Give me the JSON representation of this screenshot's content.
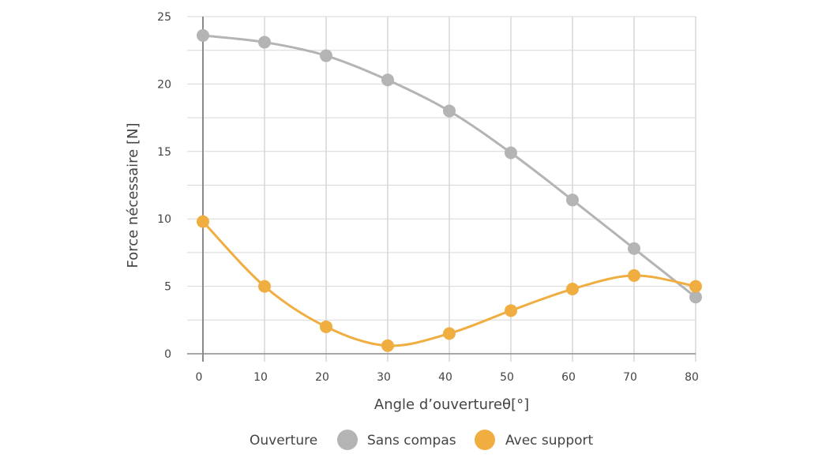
{
  "chart_data": {
    "type": "line",
    "title": "",
    "xlabel": "Angle d’ouvertureθ[°]",
    "ylabel": "Force nécessaire [N]",
    "xlim": [
      0,
      80
    ],
    "ylim": [
      0,
      25
    ],
    "x_ticks": [
      0,
      10,
      20,
      30,
      40,
      50,
      60,
      70,
      80
    ],
    "y_ticks": [
      0,
      5,
      10,
      15,
      20,
      25
    ],
    "x_minor_step": 10,
    "y_minor_step": 2.5,
    "grid": true,
    "smooth": true,
    "legend": {
      "title": "Ouverture",
      "placement": "bottom"
    },
    "x": [
      0,
      10,
      20,
      30,
      40,
      50,
      60,
      70,
      80
    ],
    "series": [
      {
        "name": "Sans compas",
        "color": "#b4b4b4",
        "values": [
          23.6,
          23.1,
          22.1,
          20.3,
          18.0,
          14.9,
          11.4,
          7.8,
          4.2
        ]
      },
      {
        "name": "Avec support",
        "color": "#f0ae41",
        "values": [
          9.8,
          5.0,
          2.0,
          0.6,
          1.5,
          3.2,
          4.8,
          5.8,
          5.0
        ]
      }
    ]
  }
}
